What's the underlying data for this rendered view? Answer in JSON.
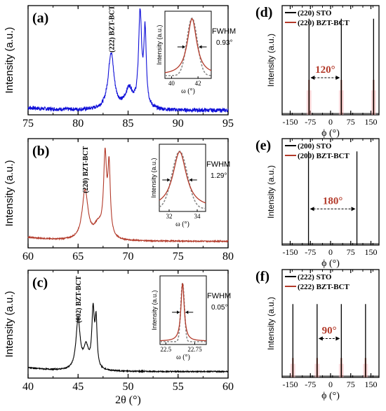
{
  "colors": {
    "blue": "#1010d8",
    "red": "#b33a2a",
    "black": "#000000",
    "pink": "#f3b5bd",
    "brown": "#b86a5a"
  },
  "chart_data": [
    {
      "id": "a",
      "type": "line",
      "label": "(a)",
      "xlim": [
        75,
        95
      ],
      "xticks": [
        75,
        80,
        85,
        90,
        95
      ],
      "ylabel": "Intensity (a.u.)",
      "xlabel": "",
      "color": "#1010d8",
      "peak_label": "(222) BZT-BCT",
      "peaks": [
        {
          "x": 83.3,
          "h": 0.52,
          "w": 0.35
        },
        {
          "x": 85.1,
          "h": 0.18,
          "w": 0.45
        },
        {
          "x": 86.2,
          "h": 0.86,
          "w": 0.18
        },
        {
          "x": 86.7,
          "h": 0.68,
          "w": 0.15
        }
      ],
      "baseline": 0.04,
      "noise": 0.035,
      "inset": {
        "label": "FWHM",
        "value": "0.93°",
        "xlim": [
          39.5,
          43
        ],
        "xticks": [
          40,
          42
        ],
        "center": 41.55,
        "width": 0.55,
        "xlabel": "ω (°)",
        "ylabel": "Intensity (a.u.)",
        "colors": [
          "#b33a2a",
          "#8a8a8a"
        ]
      }
    },
    {
      "id": "b",
      "type": "line",
      "label": "(b)",
      "xlim": [
        60,
        80
      ],
      "xticks": [
        60,
        65,
        70,
        75,
        80
      ],
      "ylabel": "Intensity (a.u.)",
      "xlabel": "",
      "color": "#b33a2a",
      "peak_label": "(220) BZT-BCT",
      "peaks": [
        {
          "x": 65.7,
          "h": 0.45,
          "w": 0.35
        },
        {
          "x": 67.0,
          "h": 0.12,
          "w": 0.5
        },
        {
          "x": 67.7,
          "h": 0.72,
          "w": 0.18
        },
        {
          "x": 68.1,
          "h": 0.62,
          "w": 0.15
        }
      ],
      "baseline": 0.06,
      "noise": 0.01,
      "inset": {
        "label": "FWHM",
        "value": "1.29°",
        "xlim": [
          31.3,
          34.6
        ],
        "xticks": [
          32,
          34
        ],
        "center": 32.75,
        "width": 0.75,
        "xlabel": "ω (°)",
        "ylabel": "Intensity (a.u.)",
        "colors": [
          "#b33a2a",
          "#8a8a8a"
        ]
      }
    },
    {
      "id": "c",
      "type": "line",
      "label": "(c)",
      "xlim": [
        40,
        60
      ],
      "xticks": [
        40,
        45,
        50,
        55,
        60
      ],
      "ylabel": "Intensity (a.u.)",
      "xlabel": "2θ (°)",
      "color": "#000000",
      "peak_label": "(002) BZT-BCT",
      "peaks": [
        {
          "x": 45.0,
          "h": 0.46,
          "w": 0.25
        },
        {
          "x": 45.8,
          "h": 0.2,
          "w": 0.3
        },
        {
          "x": 46.5,
          "h": 0.53,
          "w": 0.15
        },
        {
          "x": 46.8,
          "h": 0.42,
          "w": 0.12
        }
      ],
      "baseline": 0.06,
      "noise": 0.01,
      "inset": {
        "label": "FWHM",
        "value": "0.05°",
        "xlim": [
          22.45,
          22.85
        ],
        "xticks": [
          22.5,
          22.75
        ],
        "center": 22.645,
        "width": 0.022,
        "xlabel": "ω (°)",
        "ylabel": "Intensity (a.u.)",
        "colors": [
          "#b33a2a",
          "#8a8a8a"
        ]
      }
    },
    {
      "id": "d",
      "type": "line",
      "label": "(d)",
      "xlim": [
        -180,
        180
      ],
      "xticks": [
        -150,
        -75,
        0,
        75,
        150
      ],
      "ylabel": "Intensity (a.u.)",
      "xlabel": "ϕ (°)",
      "legend": [
        "(220) STO",
        "(220) BZT-BCT"
      ],
      "sto_peaks": [
        -80,
        40,
        160
      ],
      "sto_height": 0.88,
      "bzt_peaks": [
        -80,
        40,
        160
      ],
      "bzt_height": 0.32,
      "annotation": "120°",
      "arrow": [
        -80,
        40
      ]
    },
    {
      "id": "e",
      "type": "line",
      "label": "(e)",
      "xlim": [
        -180,
        180
      ],
      "xticks": [
        -150,
        -75,
        0,
        75,
        150
      ],
      "ylabel": "Intensity (a.u.)",
      "xlabel": "ϕ (°)",
      "legend": [
        "(200) STO",
        "(200) BZT-BCT"
      ],
      "sto_peaks": [
        -82,
        98
      ],
      "sto_height": 0.88,
      "bzt_peaks": [
        -82,
        98
      ],
      "bzt_height": 0.0,
      "annotation": "180°",
      "arrow": [
        -82,
        98
      ]
    },
    {
      "id": "f",
      "type": "line",
      "label": "(f)",
      "xlim": [
        -180,
        180
      ],
      "xticks": [
        -150,
        -75,
        0,
        75,
        150
      ],
      "ylabel": "Intensity (a.u.)",
      "xlabel": "ϕ (°)",
      "legend": [
        "(222) STO",
        "(222) BZT-BCT"
      ],
      "sto_peaks": [
        -140,
        -50,
        40,
        130
      ],
      "sto_height": 0.68,
      "bzt_peaks": [
        -140,
        -50,
        40,
        130
      ],
      "bzt_height": 0.18,
      "annotation": "90°",
      "arrow": [
        -50,
        40
      ]
    }
  ]
}
